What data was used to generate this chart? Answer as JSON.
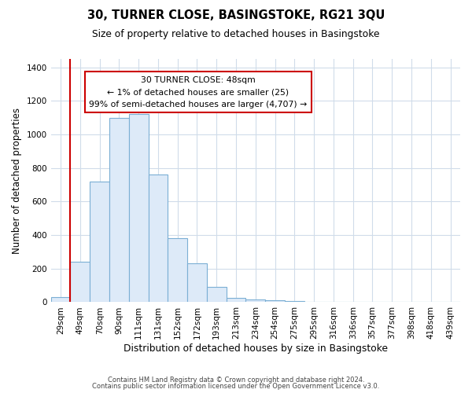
{
  "title": "30, TURNER CLOSE, BASINGSTOKE, RG21 3QU",
  "subtitle": "Size of property relative to detached houses in Basingstoke",
  "xlabel": "Distribution of detached houses by size in Basingstoke",
  "ylabel": "Number of detached properties",
  "bar_labels": [
    "29sqm",
    "49sqm",
    "70sqm",
    "90sqm",
    "111sqm",
    "131sqm",
    "152sqm",
    "172sqm",
    "193sqm",
    "213sqm",
    "234sqm",
    "254sqm",
    "275sqm",
    "295sqm",
    "316sqm",
    "336sqm",
    "357sqm",
    "377sqm",
    "398sqm",
    "418sqm",
    "439sqm"
  ],
  "bar_values": [
    30,
    240,
    720,
    1100,
    1120,
    760,
    380,
    230,
    90,
    25,
    18,
    10,
    5,
    3,
    1,
    0,
    0,
    0,
    0,
    0,
    0
  ],
  "bar_color_fill": "#ddeaf8",
  "bar_color_edge": "#7bafd4",
  "red_line_index": 1,
  "ylim": [
    0,
    1450
  ],
  "yticks": [
    0,
    200,
    400,
    600,
    800,
    1000,
    1200,
    1400
  ],
  "annotation_title": "30 TURNER CLOSE: 48sqm",
  "annotation_line1": "← 1% of detached houses are smaller (25)",
  "annotation_line2": "99% of semi-detached houses are larger (4,707) →",
  "annotation_box_color": "#ffffff",
  "annotation_box_edge": "#cc0000",
  "red_line_color": "#cc0000",
  "footnote1": "Contains HM Land Registry data © Crown copyright and database right 2024.",
  "footnote2": "Contains public sector information licensed under the Open Government Licence v3.0.",
  "background_color": "#ffffff",
  "grid_color": "#d0dcea",
  "axis_color": "#bbbbbb"
}
